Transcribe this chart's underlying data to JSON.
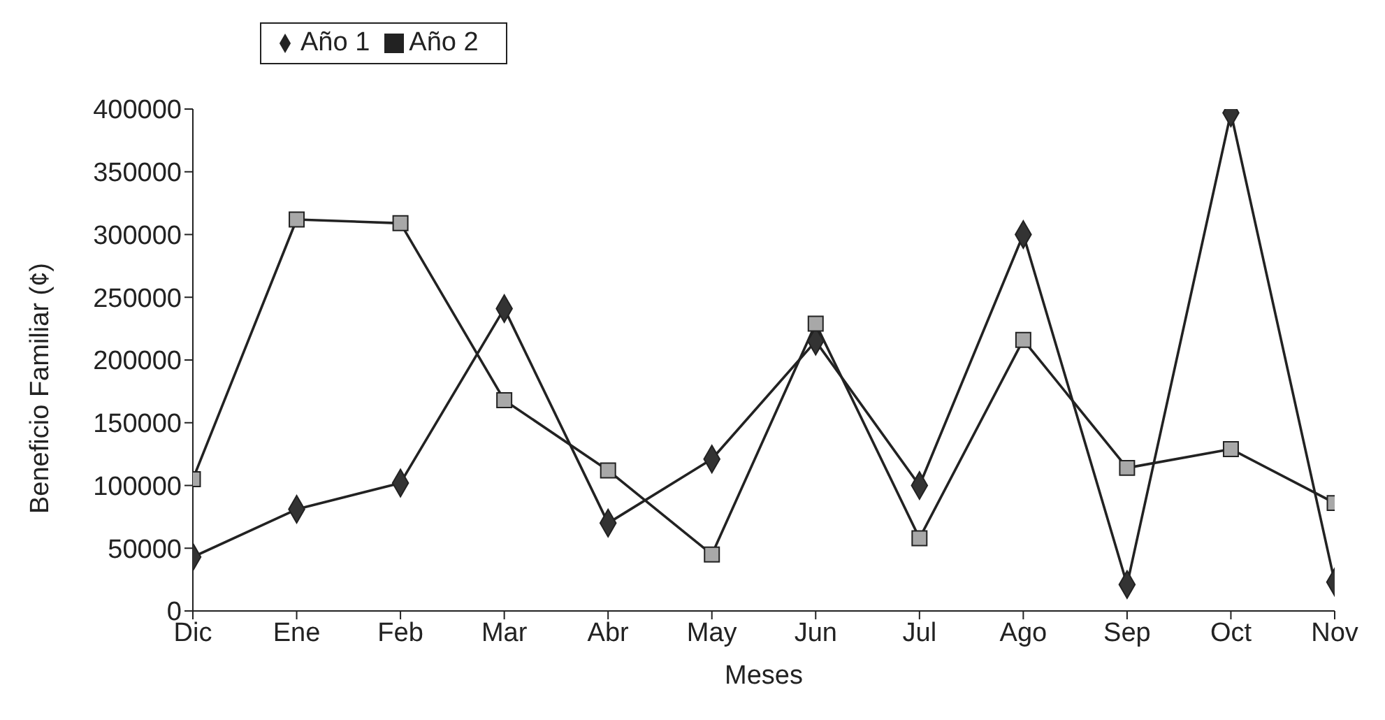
{
  "chart_data": {
    "type": "line",
    "xlabel": "Meses",
    "ylabel": "Beneficio Familiar (¢)",
    "categories": [
      "Dic",
      "Ene",
      "Feb",
      "Mar",
      "Abr",
      "May",
      "Jun",
      "Jul",
      "Ago",
      "Sep",
      "Oct",
      "Nov"
    ],
    "series": [
      {
        "name": "Año 1",
        "color": "#333333",
        "marker": "diamond",
        "values": [
          43000,
          81000,
          102000,
          241000,
          70000,
          121000,
          215000,
          100000,
          300000,
          21000,
          397000,
          23000
        ]
      },
      {
        "name": "Año 2",
        "color": "#a8a8a8",
        "marker": "square",
        "values": [
          105000,
          312000,
          309000,
          168000,
          112000,
          45000,
          229000,
          58000,
          216000,
          114000,
          129000,
          86000
        ]
      }
    ],
    "ylim": [
      0,
      400000
    ],
    "yticks": [
      0,
      50000,
      100000,
      150000,
      200000,
      250000,
      300000,
      350000,
      400000
    ],
    "grid": false,
    "legend": "top left",
    "line_style": "solid"
  }
}
